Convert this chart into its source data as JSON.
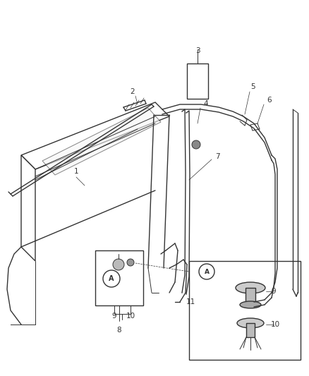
{
  "bg_color": "#ffffff",
  "line_color": "#333333",
  "fig_width": 4.38,
  "fig_height": 5.33,
  "dpi": 100
}
